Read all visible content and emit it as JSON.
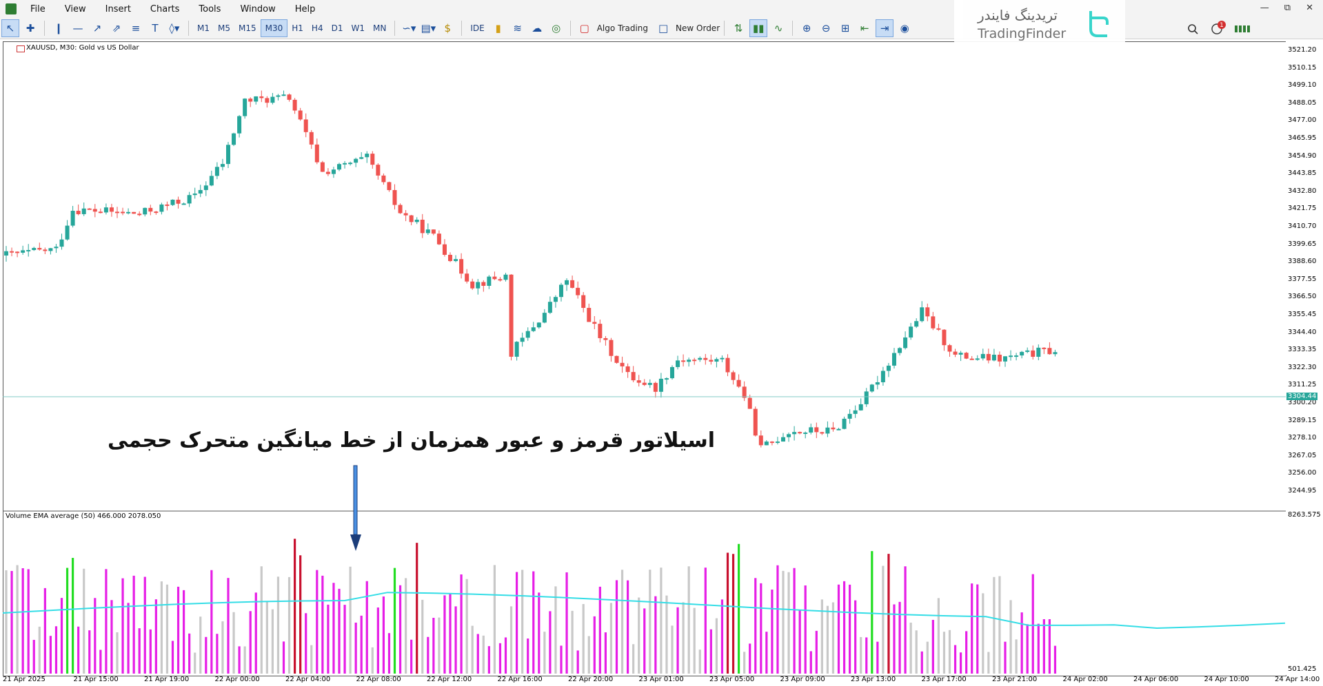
{
  "menu": {
    "items": [
      "File",
      "View",
      "Insert",
      "Charts",
      "Tools",
      "Window",
      "Help"
    ]
  },
  "toolbar": {
    "timeframes": [
      "M1",
      "M5",
      "M15",
      "M30",
      "H1",
      "H4",
      "D1",
      "W1",
      "MN"
    ],
    "selected_timeframe": "M30",
    "ide_label": "IDE",
    "algo_trading_label": "Algo Trading",
    "new_order_label": "New Order",
    "notification_count": "1"
  },
  "watermark": {
    "brand_fa": "تریدینگ فایندر",
    "brand_en": "TradingFinder"
  },
  "chart": {
    "title": "XAUUSD, M30:  Gold vs US Dollar",
    "current_price": "3304.44",
    "price_axis": [
      "3521.20",
      "3510.15",
      "3499.10",
      "3488.05",
      "3477.00",
      "3465.95",
      "3454.90",
      "3443.85",
      "3432.80",
      "3421.75",
      "3410.70",
      "3399.65",
      "3388.60",
      "3377.55",
      "3366.50",
      "3355.45",
      "3344.40",
      "3333.35",
      "3322.30",
      "3311.25",
      "3300.20",
      "3289.15",
      "3278.10",
      "3267.05",
      "3256.00",
      "3244.95"
    ],
    "time_axis": [
      "21 Apr 2025",
      "21 Apr 15:00",
      "21 Apr 19:00",
      "22 Apr 00:00",
      "22 Apr 04:00",
      "22 Apr 08:00",
      "22 Apr 12:00",
      "22 Apr 16:00",
      "22 Apr 20:00",
      "23 Apr 01:00",
      "23 Apr 05:00",
      "23 Apr 09:00",
      "23 Apr 13:00",
      "23 Apr 17:00",
      "23 Apr 21:00",
      "24 Apr 02:00",
      "24 Apr 06:00",
      "24 Apr 10:00",
      "24 Apr 14:00"
    ],
    "colors": {
      "bull": "#26a69a",
      "bear": "#ef5350",
      "bid_line": "#80cbc4"
    }
  },
  "indicator": {
    "title": "Volume EMA average (50) 466.000 2078.050",
    "axis_max": "8263.575",
    "axis_min": "501.425",
    "colors": {
      "magenta": "#e61ee6",
      "gray": "#c8c8c8",
      "green": "#22dd22",
      "red": "#c8102e",
      "ema": "#33dde6"
    }
  },
  "annotation": {
    "text": "اسیلاتور قرمز و عبور همزمان از خط میانگین متحرک حجمی"
  }
}
